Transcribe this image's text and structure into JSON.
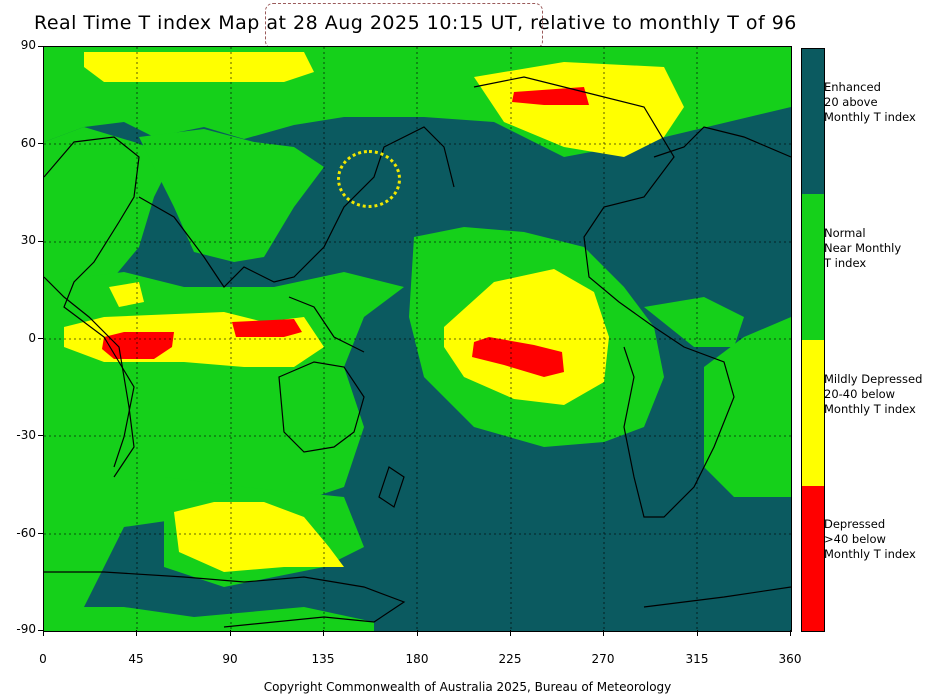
{
  "title": {
    "prefix": "Real Time T index Map",
    "date_text": "at 28 Aug 2025 10:15 UT,",
    "suffix": "relative to monthly T of 96"
  },
  "axes": {
    "lat_labels": [
      "90",
      "60",
      "30",
      "0",
      "-30",
      "-60",
      "-90"
    ],
    "lon_labels": [
      "0",
      "45",
      "90",
      "135",
      "180",
      "225",
      "270",
      "315",
      "360"
    ]
  },
  "legend": {
    "items": [
      {
        "label": "Enhanced\n20 above\nMonthly T index",
        "color": "#0b5a60"
      },
      {
        "label": "Normal\nNear Monthly\nT index",
        "color": "#15d01a"
      },
      {
        "label": "Mildly Depressed\n20-40 below\nMonthly T index",
        "color": "#ffff00"
      },
      {
        "label": "Depressed\n>40 below\nMonthly T index",
        "color": "#ff0000"
      }
    ]
  },
  "colors": {
    "enhanced": "#0b5a60",
    "normal": "#15d01a",
    "mildly_depressed": "#ffff00",
    "depressed": "#ff0000"
  },
  "copyright": "Copyright Commonwealth of Australia 2025, Bureau of Meteorology"
}
